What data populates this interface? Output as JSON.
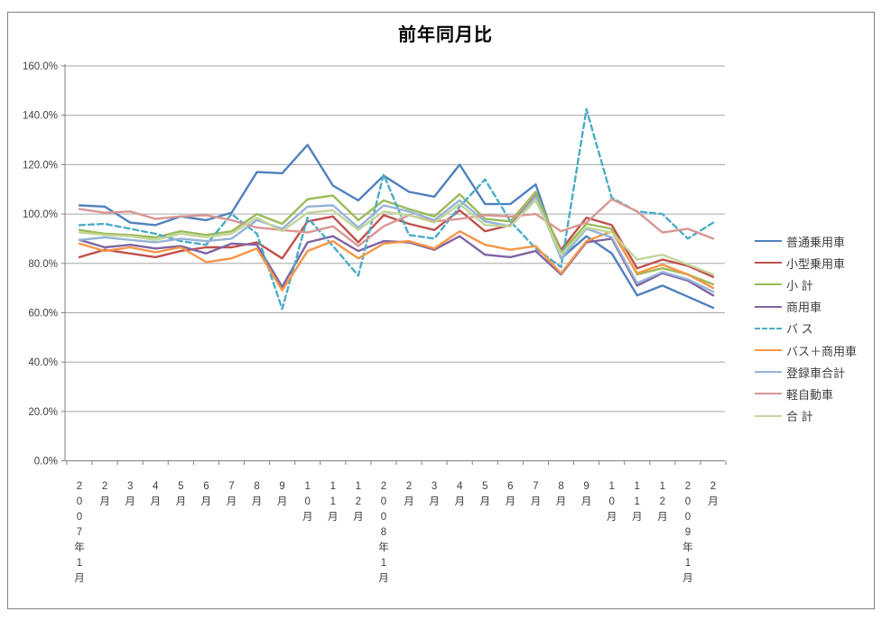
{
  "chart_title": "前年同月比",
  "colors": {
    "background": "#FFFFFF",
    "frame_border": "#808080",
    "gridline": "#A6A6A6",
    "axis_line": "#808080",
    "label_text": "#3F3F3F",
    "title_text": "#000000"
  },
  "chart_data": {
    "type": "line",
    "title": "前年同月比",
    "xlabel": "",
    "ylabel": "",
    "ylim": [
      0,
      160
    ],
    "y_tick_step": 20,
    "y_tick_labels": [
      "0.0%",
      "20.0%",
      "40.0%",
      "60.0%",
      "80.0%",
      "100.0%",
      "120.0%",
      "140.0%",
      "160.0%"
    ],
    "grid": "horizontal-only",
    "legend_position": "right",
    "x_label_orientation": "vertical-stacked",
    "categories": [
      "2007年1月",
      "2月",
      "3月",
      "4月",
      "5月",
      "6月",
      "7月",
      "8月",
      "9月",
      "10月",
      "11月",
      "12月",
      "2008年1月",
      "2月",
      "3月",
      "4月",
      "5月",
      "6月",
      "7月",
      "8月",
      "9月",
      "10月",
      "11月",
      "12月",
      "2009年1月",
      "2月"
    ],
    "series": [
      {
        "name": "普通乗用車",
        "color": "#4F81BD",
        "dashed": false,
        "values": [
          103.5,
          103,
          96.5,
          95.5,
          99,
          97.5,
          100.5,
          117,
          116.5,
          128,
          111.5,
          105.5,
          115.5,
          109,
          107,
          120,
          104,
          104,
          112,
          82,
          91,
          84,
          67,
          71,
          66.5,
          62
        ]
      },
      {
        "name": "小型乗用車",
        "color": "#C0504D",
        "dashed": false,
        "values": [
          82.5,
          85.5,
          84,
          82.5,
          85,
          86.5,
          86.5,
          88.5,
          82,
          97,
          99,
          88.5,
          99.5,
          96,
          93.5,
          101.5,
          93,
          95.5,
          107.5,
          85.5,
          98.5,
          95.5,
          78,
          81.5,
          79,
          74.5
        ]
      },
      {
        "name": "小 計",
        "color": "#9BBB59",
        "dashed": false,
        "values": [
          93.5,
          92,
          91.5,
          90.5,
          93,
          91.5,
          93,
          100,
          96,
          106,
          107.5,
          97.5,
          105.5,
          102,
          99,
          108,
          98,
          97,
          109,
          84.5,
          96,
          94,
          75.5,
          78,
          75.5,
          71.5
        ]
      },
      {
        "name": "商用車",
        "color": "#8064A2",
        "dashed": false,
        "values": [
          89.5,
          86.5,
          87.5,
          86,
          87,
          84,
          88,
          87.5,
          70.5,
          88.5,
          91,
          85,
          89,
          88.5,
          85.5,
          91,
          83.5,
          82.5,
          85,
          75.5,
          88.5,
          90,
          71,
          76,
          73,
          67
        ]
      },
      {
        "name": "バ ス",
        "color": "#4BACC6",
        "dashed": true,
        "values": [
          95.5,
          96,
          94,
          92,
          89,
          87.5,
          100,
          92,
          61.5,
          98.5,
          87,
          75,
          116,
          91.5,
          90,
          103,
          114,
          97,
          86,
          78.5,
          142.5,
          106.5,
          101,
          100,
          90,
          96.5
        ]
      },
      {
        "name": "バス＋商用車",
        "color": "#F79646",
        "dashed": false,
        "values": [
          88,
          85,
          86.5,
          84.5,
          86.5,
          80.5,
          82,
          86,
          69,
          85,
          89,
          82,
          88,
          89,
          86,
          93,
          87.5,
          85.5,
          87,
          76,
          89,
          93,
          76,
          79.5,
          75.5,
          70
        ]
      },
      {
        "name": "登録車合計",
        "color": "#95B3D7",
        "dashed": false,
        "values": [
          89.5,
          90.5,
          89.5,
          88.5,
          90,
          89,
          90,
          97.5,
          94,
          103,
          103.5,
          94.5,
          103.5,
          101,
          97.5,
          105.5,
          97,
          95,
          107,
          82,
          94,
          90.5,
          72,
          76.5,
          73.5,
          68.5
        ]
      },
      {
        "name": "軽自動車",
        "color": "#D99694",
        "dashed": false,
        "values": [
          102,
          100.5,
          101,
          98,
          99,
          99.5,
          97.5,
          94.5,
          93.5,
          92.5,
          95,
          87,
          95,
          99.5,
          97,
          98,
          99.5,
          99,
          100,
          93,
          96.5,
          106,
          101,
          92.5,
          94,
          90
        ]
      },
      {
        "name": "合 計",
        "color": "#C3D69B",
        "dashed": false,
        "values": [
          92.5,
          91.5,
          91,
          89.5,
          92,
          90.5,
          92,
          98.5,
          93,
          100.5,
          101.5,
          93.5,
          101,
          99.5,
          96.5,
          104,
          95.5,
          95,
          105.5,
          83.5,
          94.5,
          92.5,
          81.5,
          83.5,
          79.5,
          75.5
        ]
      }
    ]
  }
}
